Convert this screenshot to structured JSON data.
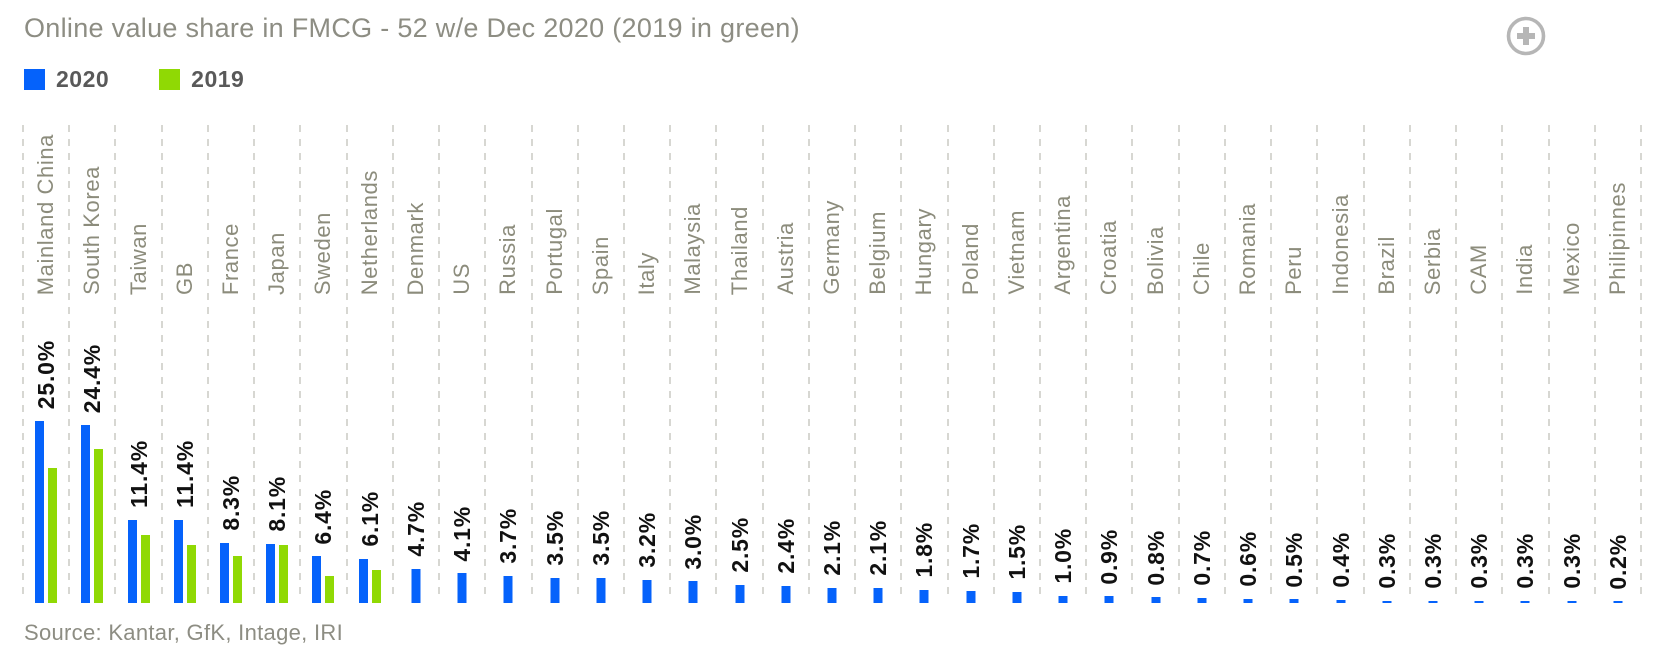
{
  "header": {
    "title": "Online value share in FMCG - 52 w/e Dec 2020 (2019 in green)"
  },
  "icons": {
    "expand": "plus-circle-icon",
    "expand_color": "#b6b6b6"
  },
  "legend": {
    "items": [
      {
        "label": "2020",
        "color": "#0562fb"
      },
      {
        "label": "2019",
        "color": "#90d904"
      }
    ]
  },
  "footer": {
    "source": "Source: Kantar, GfK, Intage, IRI"
  },
  "chart_data": {
    "type": "bar",
    "title": "Online value share in FMCG - 52 w/e Dec 2020 (2019 in green)",
    "xlabel": "",
    "ylabel": "",
    "ylim": [
      0,
      26
    ],
    "grid": "vertical-dashed",
    "legend_position": "top-left",
    "label_format": "percent-one-decimal",
    "categories": [
      "Mainland China",
      "South Korea",
      "Taiwan",
      "GB",
      "France",
      "Japan",
      "Sweden",
      "Netherlands",
      "Denmark",
      "US",
      "Russia",
      "Portugal",
      "Spain",
      "Italy",
      "Malaysia",
      "Thailand",
      "Austria",
      "Germany",
      "Belgium",
      "Hungary",
      "Poland",
      "Vietnam",
      "Argentina",
      "Croatia",
      "Bolivia",
      "Chile",
      "Romania",
      "Peru",
      "Indonesia",
      "Brazil",
      "Serbia",
      "CAM",
      "India",
      "Mexico",
      "Philipinnes"
    ],
    "series": [
      {
        "name": "2020",
        "color": "#0562fb",
        "values": [
          25.0,
          24.4,
          11.4,
          11.4,
          8.3,
          8.1,
          6.4,
          6.1,
          4.7,
          4.1,
          3.7,
          3.5,
          3.5,
          3.2,
          3.0,
          2.5,
          2.4,
          2.1,
          2.1,
          1.8,
          1.7,
          1.5,
          1.0,
          0.9,
          0.8,
          0.7,
          0.6,
          0.5,
          0.4,
          0.3,
          0.3,
          0.3,
          0.3,
          0.3,
          0.2
        ],
        "data_labels": [
          "25.0%",
          "24.4%",
          "11.4%",
          "11.4%",
          "8.3%",
          "8.1%",
          "6.4%",
          "6.1%",
          "4.7%",
          "4.1%",
          "3.7%",
          "3.5%",
          "3.5%",
          "3.2%",
          "3.0%",
          "2.5%",
          "2.4%",
          "2.1%",
          "2.1%",
          "1.8%",
          "1.7%",
          "1.5%",
          "1.0%",
          "0.9%",
          "0.8%",
          "0.7%",
          "0.6%",
          "0.5%",
          "0.4%",
          "0.3%",
          "0.3%",
          "0.3%",
          "0.3%",
          "0.3%",
          "0.2%"
        ]
      },
      {
        "name": "2019",
        "color": "#90d904",
        "values": [
          18.6,
          21.1,
          9.3,
          8.0,
          6.4,
          8.0,
          3.7,
          4.5,
          null,
          null,
          null,
          null,
          null,
          null,
          null,
          null,
          null,
          null,
          null,
          null,
          null,
          null,
          null,
          null,
          null,
          null,
          null,
          null,
          null,
          null,
          null,
          null,
          null,
          null,
          null
        ],
        "data_labels": []
      }
    ]
  }
}
